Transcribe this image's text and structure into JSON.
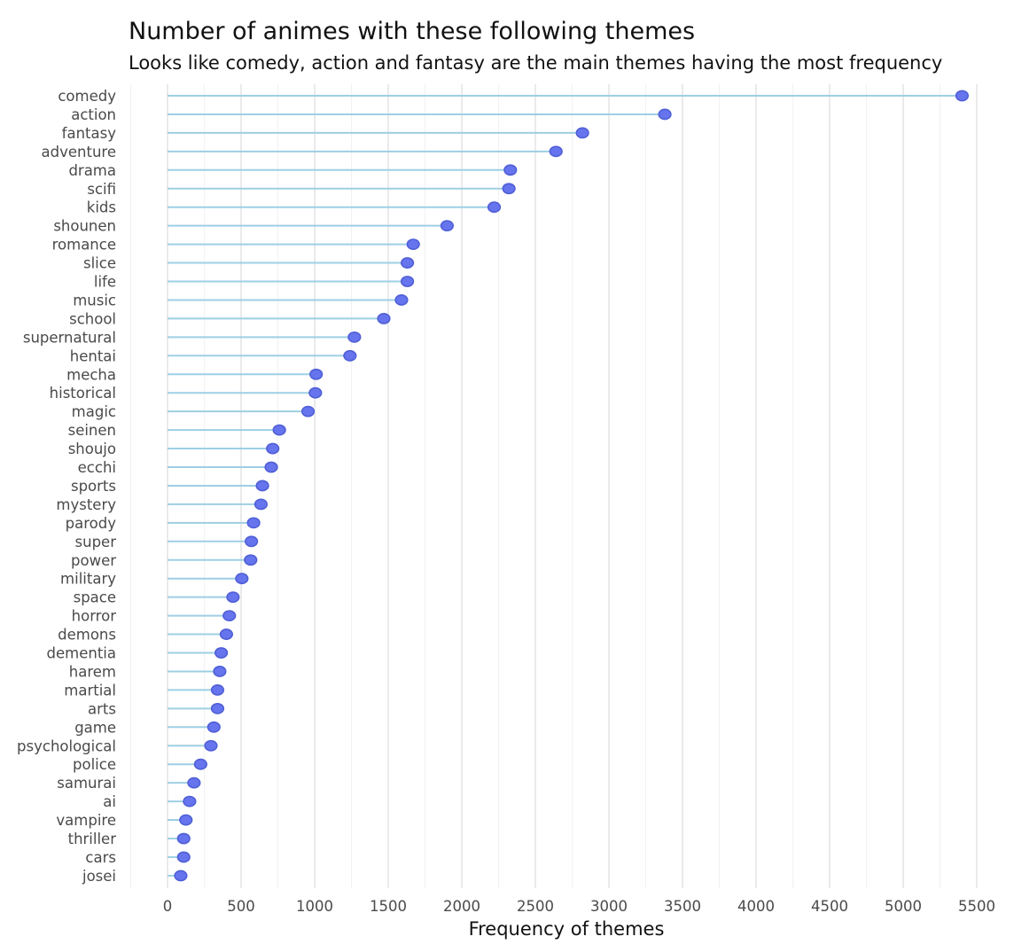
{
  "chart_data": {
    "type": "lollipop",
    "title": "Number of animes with these following themes",
    "subtitle": "Looks like comedy, action and fantasy are the main themes having the most frequency",
    "xlabel": "Frequency of themes",
    "ylabel": "",
    "xlim": [
      0,
      5500
    ],
    "x_ticks": [
      0,
      500,
      1000,
      1500,
      2000,
      2500,
      3000,
      3500,
      4000,
      4500,
      5000,
      5500
    ],
    "grid": true,
    "colors": {
      "stem": "#9ecfe3",
      "point_fill": "#6675ee",
      "point_stroke": "#4f5fd6"
    },
    "categories": [
      "comedy",
      "action",
      "fantasy",
      "adventure",
      "drama",
      "scifi",
      "kids",
      "shounen",
      "romance",
      "slice",
      "life",
      "music",
      "school",
      "supernatural",
      "hentai",
      "mecha",
      "historical",
      "magic",
      "seinen",
      "shoujo",
      "ecchi",
      "sports",
      "mystery",
      "parody",
      "super",
      "power",
      "military",
      "space",
      "horror",
      "demons",
      "dementia",
      "harem",
      "martial",
      "arts",
      "game",
      "psychological",
      "police",
      "samurai",
      "ai",
      "vampire",
      "thriller",
      "cars",
      "josei"
    ],
    "values": [
      5400,
      3380,
      2820,
      2640,
      2330,
      2320,
      2220,
      1900,
      1670,
      1630,
      1630,
      1590,
      1470,
      1270,
      1240,
      1010,
      1005,
      955,
      760,
      715,
      705,
      645,
      635,
      585,
      570,
      565,
      505,
      445,
      420,
      400,
      365,
      355,
      340,
      340,
      315,
      295,
      225,
      180,
      150,
      125,
      110,
      110,
      90
    ]
  }
}
